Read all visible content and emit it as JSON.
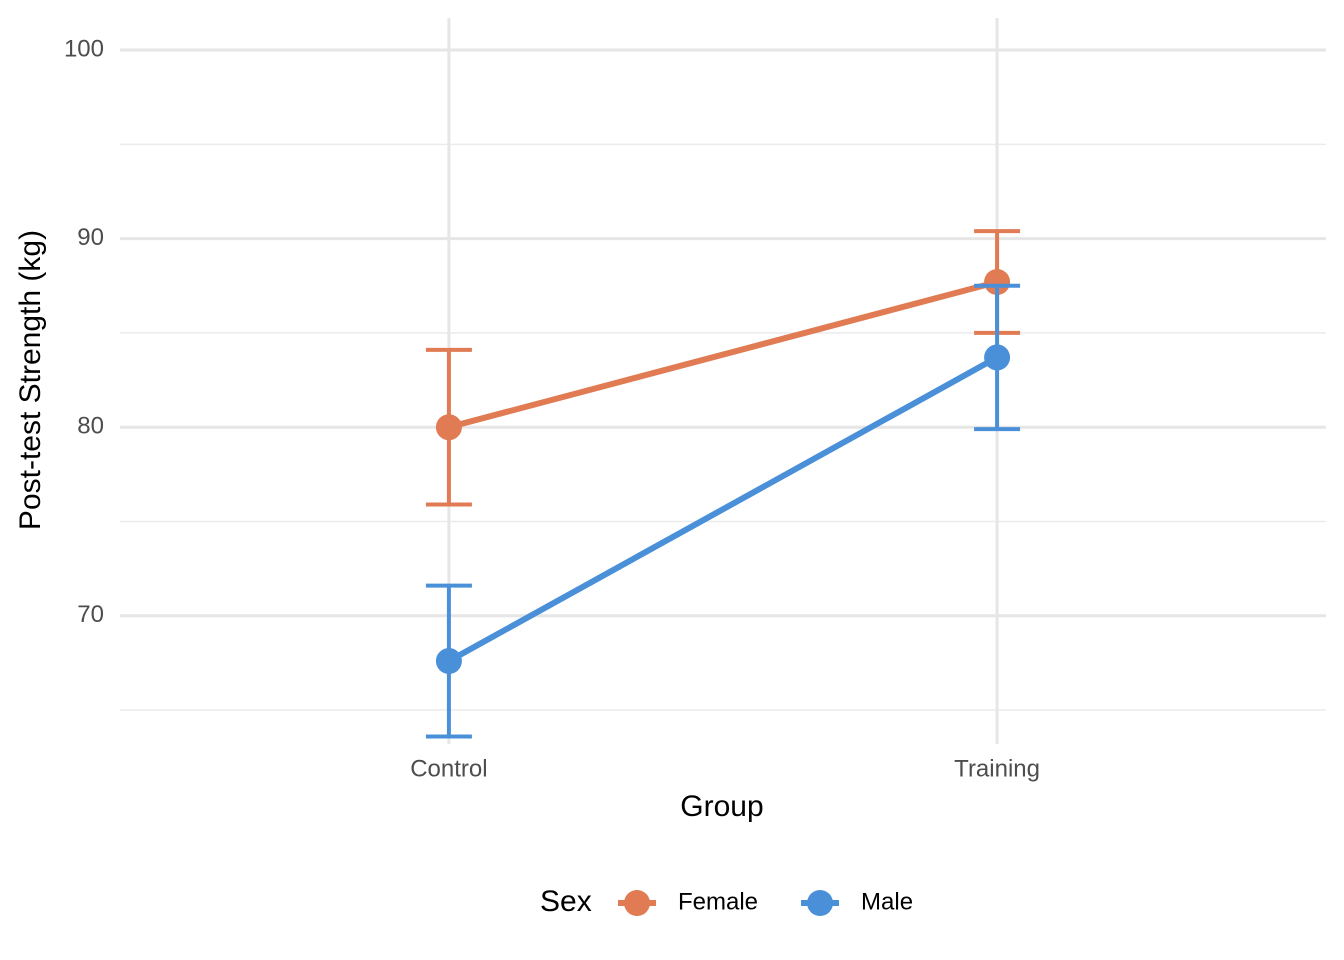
{
  "chart_data": {
    "type": "line",
    "x_label": "Group",
    "y_label": "Post-test Strength (kg)",
    "categories": [
      "Control",
      "Training"
    ],
    "series": [
      {
        "name": "Female",
        "color": "#E07B54",
        "values": [
          80.0,
          87.7
        ],
        "errors": [
          4.1,
          2.7
        ]
      },
      {
        "name": "Male",
        "color": "#4A90D9",
        "values": [
          67.6,
          83.7
        ],
        "errors": [
          4.0,
          3.8
        ]
      }
    ],
    "ylim": [
      63.2,
      101.7
    ],
    "yticks": [
      70,
      80,
      90,
      100
    ],
    "y_minor_grid": [
      65,
      75,
      85,
      95
    ],
    "grid": true,
    "legend_title": "Sex",
    "legend_position": "bottom"
  }
}
